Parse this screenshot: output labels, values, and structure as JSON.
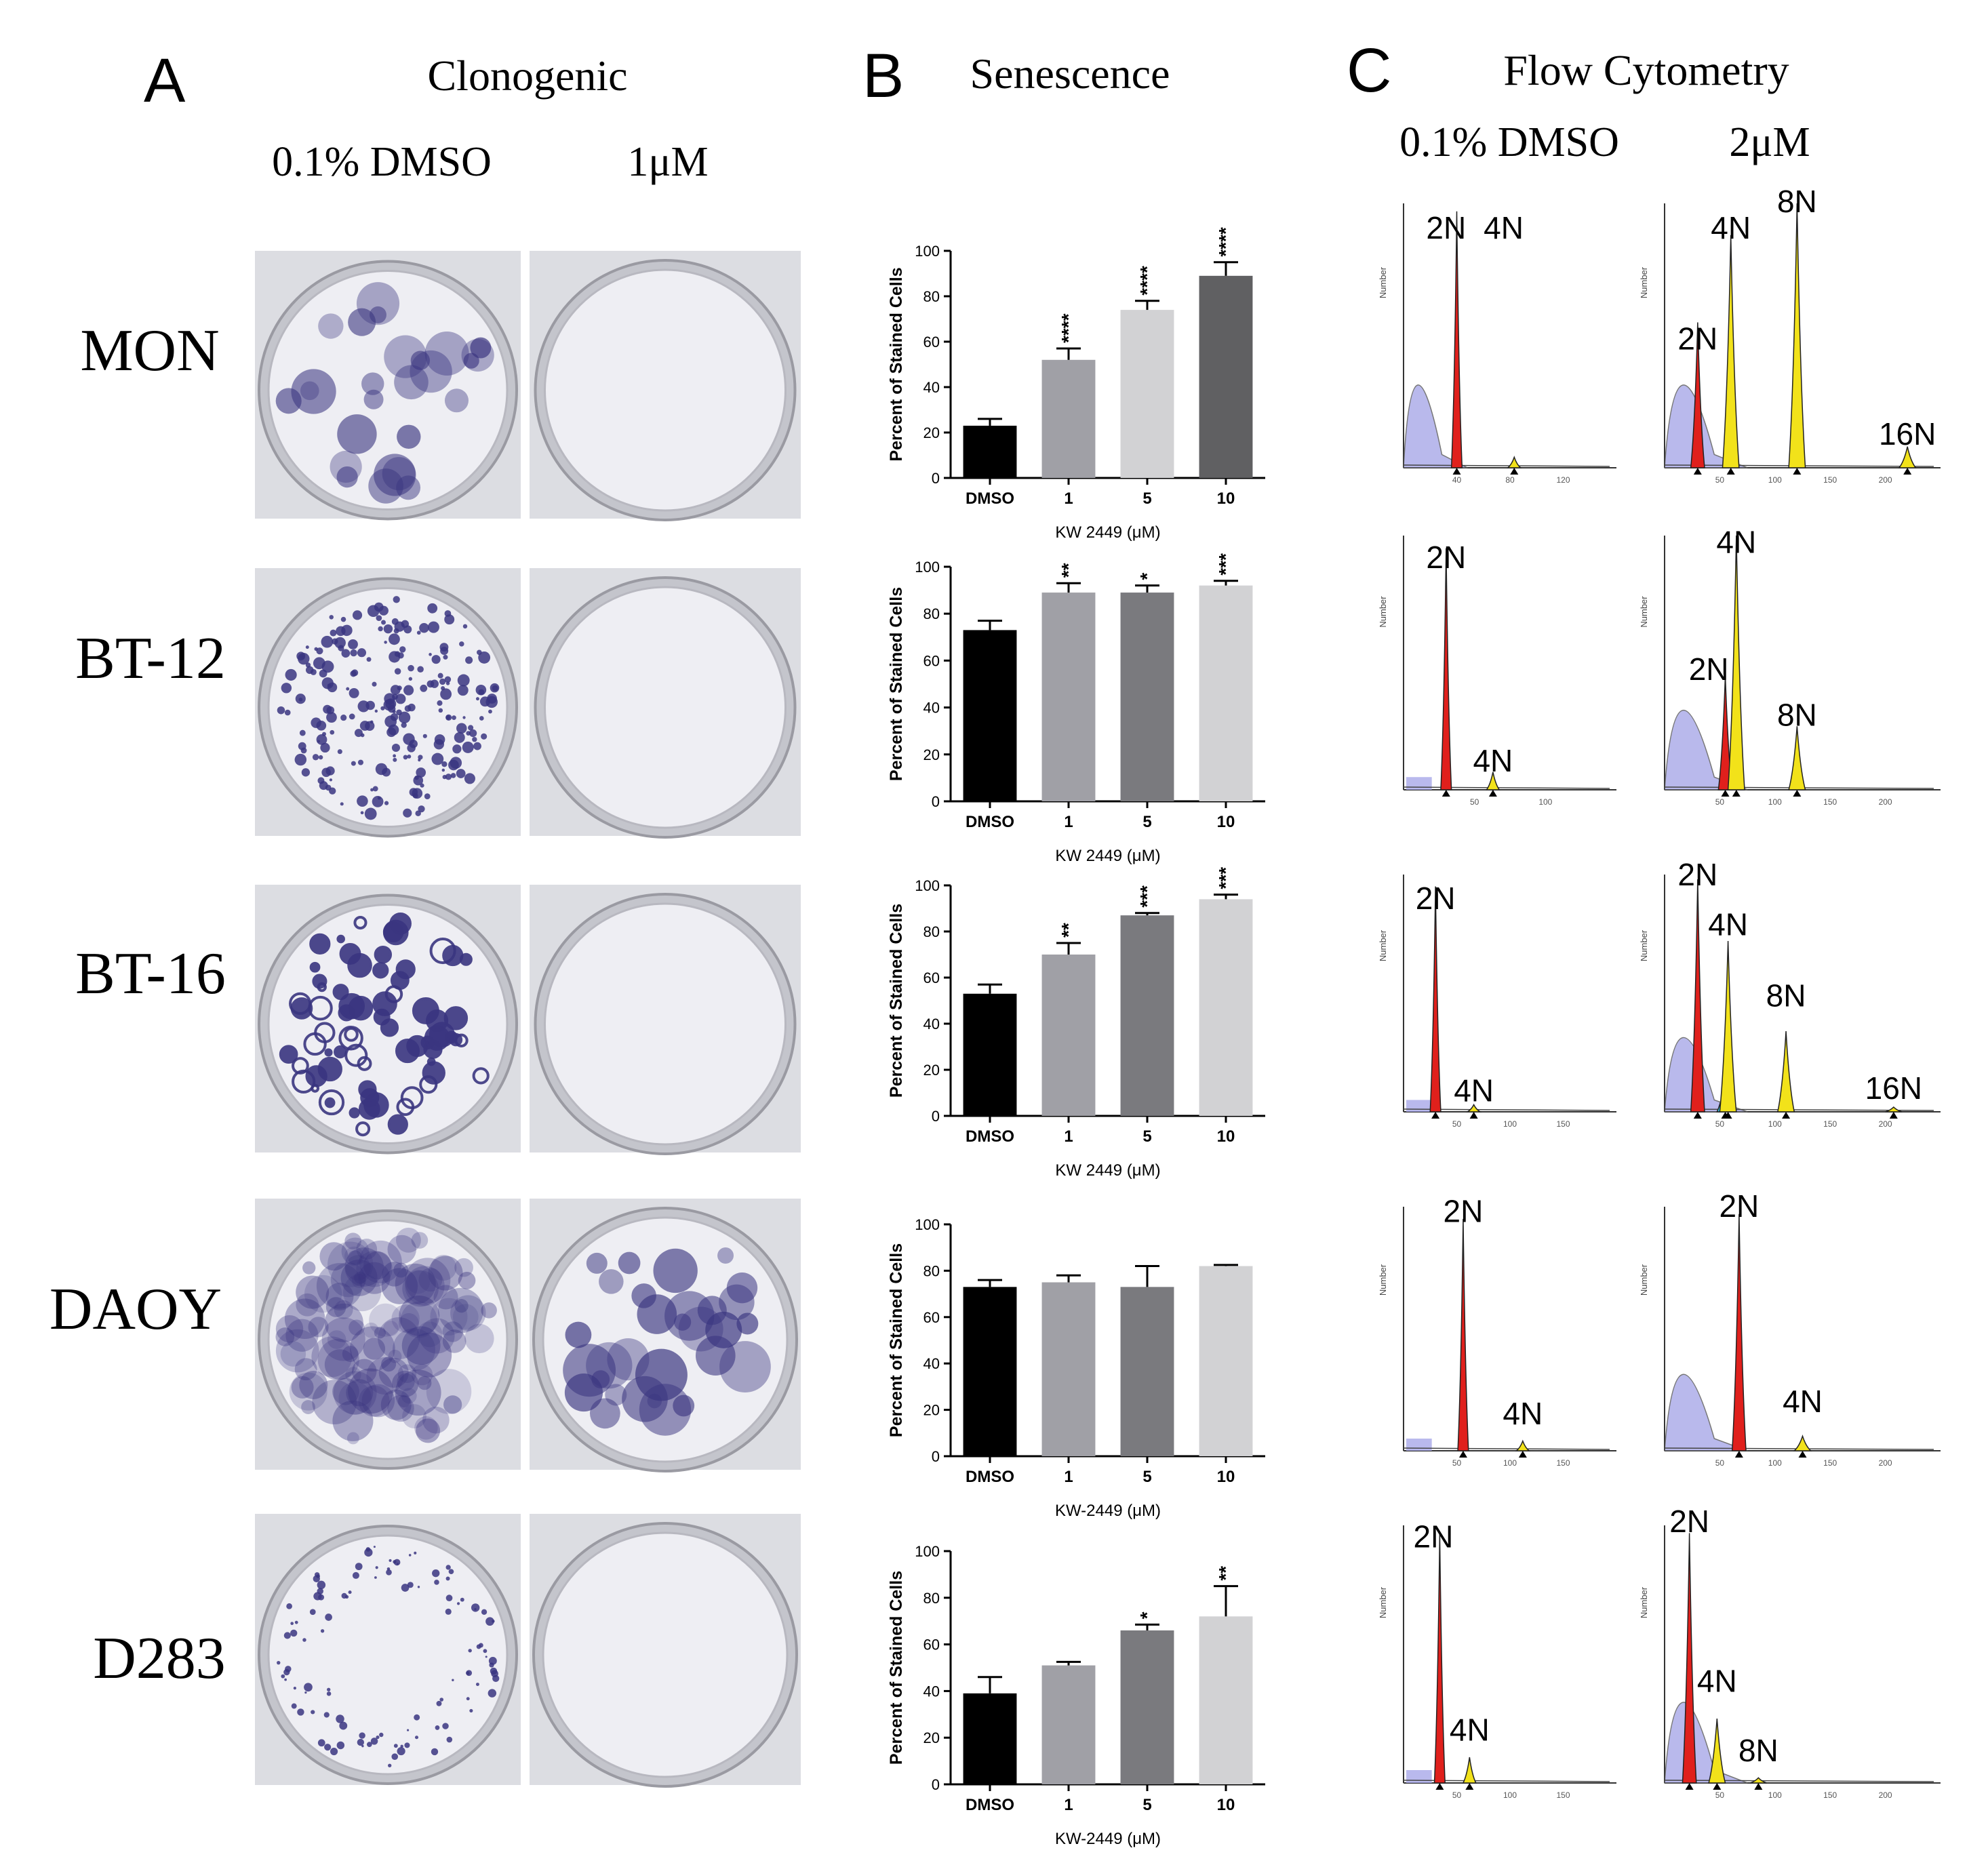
{
  "panel_a": {
    "letter": "A",
    "title": "Clonogenic",
    "col_headers": [
      "0.1% DMSO",
      "1μM"
    ],
    "row_labels": [
      "MON",
      "BT-12",
      "BT-16",
      "DAOY",
      "D283"
    ]
  },
  "panel_b": {
    "letter": "B",
    "title": "Senescence"
  },
  "panel_c": {
    "letter": "C",
    "title": "Flow Cytometry",
    "col_headers": [
      "0.1% DMSO",
      "2μM"
    ],
    "histograms": [
      {
        "peaks": [
          "2N",
          "4N"
        ],
        "axis_label": "Number",
        "x_ticks": [
          "40",
          "80",
          "120"
        ]
      },
      {
        "peaks": [
          "2N",
          "4N",
          "8N",
          "16N"
        ],
        "axis_label": "Number",
        "x_ticks": [
          "50",
          "100",
          "150",
          "200"
        ]
      },
      {
        "peaks": [
          "2N",
          "4N"
        ],
        "axis_label": "Number",
        "x_ticks": [
          "50",
          "100"
        ]
      },
      {
        "peaks": [
          "2N",
          "4N",
          "8N"
        ],
        "axis_label": "Number",
        "x_ticks": [
          "50",
          "100",
          "150",
          "200"
        ]
      },
      {
        "peaks": [
          "2N",
          "4N"
        ],
        "axis_label": "Number",
        "x_ticks": [
          "50",
          "100",
          "150"
        ]
      },
      {
        "peaks": [
          "2N",
          "4N",
          "8N",
          "16N"
        ],
        "axis_label": "Number",
        "x_ticks": [
          "50",
          "100",
          "150",
          "200"
        ]
      },
      {
        "peaks": [
          "2N",
          "4N"
        ],
        "axis_label": "Number",
        "x_ticks": [
          "50",
          "100",
          "150"
        ]
      },
      {
        "peaks": [
          "2N",
          "4N"
        ],
        "axis_label": "Number",
        "x_ticks": [
          "50",
          "100",
          "150",
          "200"
        ]
      },
      {
        "peaks": [
          "2N",
          "4N"
        ],
        "axis_label": "Number",
        "x_ticks": [
          "50",
          "100",
          "150"
        ]
      },
      {
        "peaks": [
          "2N",
          "4N",
          "8N"
        ],
        "axis_label": "Number",
        "x_ticks": [
          "50",
          "100",
          "150",
          "200"
        ]
      }
    ]
  },
  "colors": {
    "g1_peak": "#e0201c",
    "s_g2_peak": "#f2e21a",
    "debris": "#a8a8e8",
    "cyan_peak": "#38c8e8",
    "plate_stain": "#3a3580",
    "plate_bg": "#e8e8ee",
    "bar_colors": [
      "#000000",
      "#a0a0a6",
      "#d2d2d4",
      "#606062",
      "#7a7a7e",
      "#d0d0d2"
    ]
  },
  "chart_data": [
    {
      "type": "bar",
      "categories": [
        "DMSO",
        "1",
        "5",
        "10"
      ],
      "values": [
        23,
        52,
        74,
        89
      ],
      "errors": [
        3,
        5,
        4,
        6
      ],
      "significance": [
        "",
        "****",
        "****",
        "****"
      ],
      "ylabel": "Percent of Stained Cells",
      "xlabel": "KW 2449 (μM)",
      "ylim": [
        0,
        100
      ],
      "yticks": [
        "0",
        "20",
        "40",
        "60",
        "80",
        "100"
      ],
      "bar_colors": [
        "#000000",
        "#a0a0a6",
        "#d2d2d4",
        "#606062"
      ]
    },
    {
      "type": "bar",
      "categories": [
        "DMSO",
        "1",
        "5",
        "10"
      ],
      "values": [
        73,
        89,
        89,
        92
      ],
      "errors": [
        4,
        4,
        3,
        2
      ],
      "significance": [
        "",
        "**",
        "*",
        "***"
      ],
      "ylabel": "Percent of  Stained Cells",
      "xlabel": "KW 2449 (μM)",
      "ylim": [
        0,
        100
      ],
      "yticks": [
        "0",
        "20",
        "40",
        "60",
        "80",
        "100"
      ],
      "bar_colors": [
        "#000000",
        "#a0a0a6",
        "#7a7a7e",
        "#d2d2d4"
      ]
    },
    {
      "type": "bar",
      "categories": [
        "DMSO",
        "1",
        "5",
        "10"
      ],
      "values": [
        53,
        70,
        87,
        94
      ],
      "errors": [
        4,
        5,
        1,
        2
      ],
      "significance": [
        "",
        "**",
        "***",
        "***"
      ],
      "ylabel": "Percent of  Stained Cells",
      "xlabel": "KW 2449 (μM)",
      "ylim": [
        0,
        100
      ],
      "yticks": [
        "0",
        "20",
        "40",
        "60",
        "80",
        "100"
      ],
      "bar_colors": [
        "#000000",
        "#a0a0a6",
        "#7a7a7e",
        "#d2d2d4"
      ]
    },
    {
      "type": "bar",
      "categories": [
        "DMSO",
        "1",
        "5",
        "10"
      ],
      "values": [
        73,
        75,
        73,
        82
      ],
      "errors": [
        3,
        3,
        9,
        0.5
      ],
      "significance": [
        "",
        "",
        "",
        ""
      ],
      "ylabel": "Percent of  Stained Cells",
      "xlabel": "KW-2449 (μM)",
      "ylim": [
        0,
        100
      ],
      "yticks": [
        "0",
        "20",
        "40",
        "60",
        "80",
        "100"
      ],
      "bar_colors": [
        "#000000",
        "#a0a0a6",
        "#7a7a7e",
        "#d2d2d4"
      ]
    },
    {
      "type": "bar",
      "categories": [
        "DMSO",
        "1",
        "5",
        "10"
      ],
      "values": [
        39,
        51,
        66,
        72
      ],
      "errors": [
        7,
        1.5,
        2.5,
        13
      ],
      "significance": [
        "",
        "",
        "*",
        "**"
      ],
      "ylabel": "Percent of  Stained Cells",
      "xlabel": "KW-2449 (μM)",
      "ylim": [
        0,
        100
      ],
      "yticks": [
        "0",
        "20",
        "40",
        "60",
        "80",
        "100"
      ],
      "bar_colors": [
        "#000000",
        "#a0a0a6",
        "#7a7a7e",
        "#d2d2d4"
      ]
    }
  ]
}
